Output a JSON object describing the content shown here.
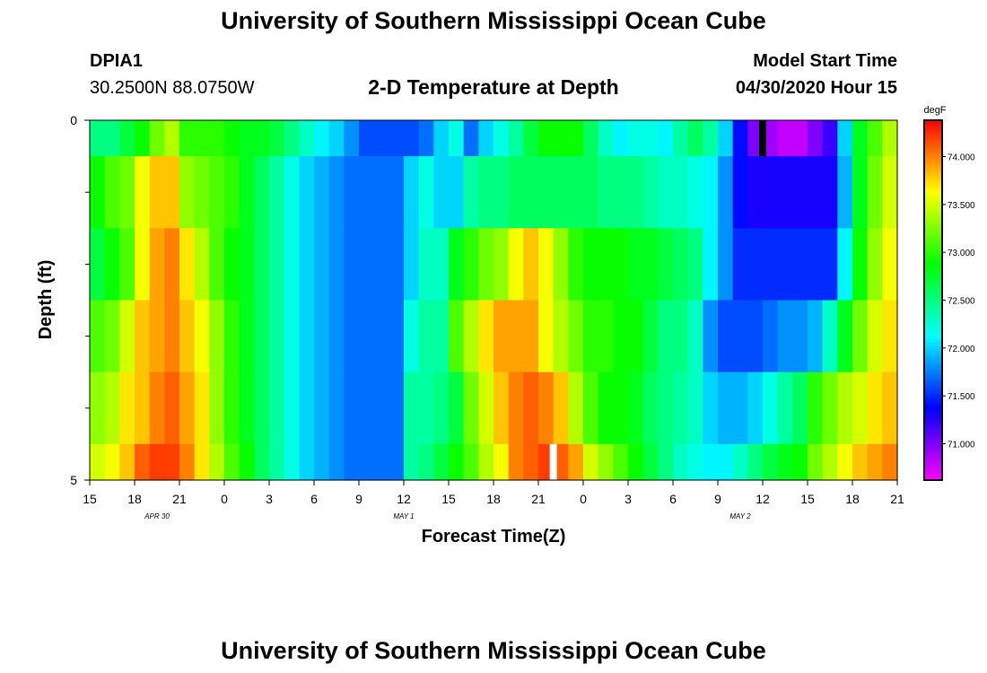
{
  "header": {
    "title_top": "University of Southern Mississippi Ocean Cube",
    "station": "DPIA1",
    "coords": "30.2500N 88.0750W",
    "plot_title": "2-D Temperature at Depth",
    "model_start_label": "Model Start Time",
    "model_start_value": "04/30/2020 Hour 15",
    "title_bottom": "University of Southern Mississippi Ocean Cube"
  },
  "chart_data": {
    "type": "heatmap",
    "title": "2-D Temperature at Depth",
    "xlabel": "Forecast Time(Z)",
    "ylabel": "Depth (ft)",
    "colorbar_unit": "degF",
    "x_range_hours": [
      0,
      54
    ],
    "y_range_ft": [
      0,
      5
    ],
    "y_tick_labels": [
      {
        "value": 0,
        "label": "0"
      },
      {
        "value": 5,
        "label": "5"
      }
    ],
    "y_minor_ticks": [
      1,
      2,
      3,
      4
    ],
    "x_tick_labels": [
      "15",
      "18",
      "21",
      "0",
      "3",
      "6",
      "9",
      "12",
      "15",
      "18",
      "21",
      "0",
      "3",
      "6",
      "9",
      "12",
      "15",
      "18",
      "21"
    ],
    "date_labels": [
      {
        "label": "APR 30",
        "hour": 4.5
      },
      {
        "label": "MAY 1",
        "hour": 21
      },
      {
        "label": "MAY 2",
        "hour": 43.5
      }
    ],
    "colorbar": {
      "min": 70.62,
      "max": 74.38,
      "tick_labels": [
        "74.000",
        "73.500",
        "73.000",
        "72.500",
        "72.000",
        "71.500",
        "71.000"
      ],
      "tick_values": [
        74.0,
        73.5,
        73.0,
        72.5,
        72.0,
        71.5,
        71.0
      ]
    },
    "layer_depths_ft": [
      "0.0-0.5",
      "0.5-1.5",
      "1.5-2.5",
      "2.5-3.5",
      "3.5-4.5",
      "4.5-5.0"
    ],
    "column_hours": [
      0,
      1,
      2,
      3,
      4,
      5,
      6,
      7,
      8,
      9,
      10,
      11,
      12,
      13,
      14,
      15,
      16,
      17,
      18,
      19,
      20,
      21,
      22,
      23,
      24,
      25,
      26,
      27,
      28,
      29,
      30,
      31,
      32,
      33,
      34,
      35,
      36,
      37,
      38,
      39,
      40,
      41,
      42,
      43,
      44,
      45,
      46,
      47,
      48,
      49,
      50,
      51,
      52,
      53
    ],
    "values_degF": [
      [
        72.5,
        72.5,
        72.7,
        72.9,
        73.2,
        73.4,
        73.0,
        73.0,
        73.0,
        72.9,
        72.8,
        72.8,
        72.7,
        72.5,
        72.3,
        72.1,
        72.0,
        71.8,
        71.6,
        71.6,
        71.6,
        71.6,
        71.7,
        72.0,
        72.2,
        71.7,
        72.0,
        72.2,
        72.4,
        72.7,
        72.9,
        72.9,
        72.9,
        72.6,
        72.3,
        72.1,
        72.2,
        72.2,
        72.1,
        72.4,
        72.6,
        72.4,
        72.0,
        71.4,
        71.0,
        70.9,
        70.8,
        70.8,
        71.0,
        71.2,
        72.0,
        72.8,
        73.1,
        73.4
      ],
      [
        72.9,
        73.1,
        73.2,
        73.6,
        73.8,
        73.8,
        73.3,
        73.2,
        73.1,
        73.0,
        72.8,
        72.6,
        72.4,
        72.2,
        72.0,
        71.9,
        71.8,
        71.7,
        71.7,
        71.7,
        71.7,
        72.0,
        72.2,
        72.0,
        72.0,
        72.4,
        72.5,
        72.5,
        72.6,
        72.6,
        72.6,
        72.6,
        72.6,
        72.6,
        72.5,
        72.5,
        72.5,
        72.4,
        72.3,
        72.3,
        72.2,
        72.1,
        71.8,
        71.4,
        71.3,
        71.3,
        71.3,
        71.3,
        71.3,
        71.3,
        71.9,
        72.8,
        73.2,
        73.5
      ],
      [
        72.7,
        72.9,
        73.1,
        73.6,
        73.9,
        74.0,
        73.7,
        73.4,
        73.1,
        72.9,
        72.8,
        72.6,
        72.4,
        72.2,
        72.0,
        71.9,
        71.8,
        71.7,
        71.7,
        71.7,
        71.7,
        72.0,
        72.3,
        72.3,
        72.8,
        73.0,
        73.2,
        73.3,
        73.6,
        73.8,
        73.6,
        73.3,
        73.0,
        72.9,
        72.9,
        72.9,
        72.8,
        72.8,
        72.7,
        72.6,
        72.5,
        72.1,
        71.8,
        71.5,
        71.5,
        71.5,
        71.5,
        71.5,
        71.5,
        71.5,
        72.1,
        72.9,
        73.3,
        73.6
      ],
      [
        73.1,
        73.2,
        73.5,
        73.8,
        73.9,
        74.0,
        73.8,
        73.6,
        73.3,
        73.0,
        72.8,
        72.6,
        72.4,
        72.2,
        72.0,
        71.9,
        71.8,
        71.7,
        71.7,
        71.7,
        71.7,
        72.2,
        72.4,
        72.4,
        73.1,
        73.4,
        73.7,
        73.9,
        73.9,
        73.9,
        73.6,
        73.4,
        73.2,
        73.0,
        73.0,
        72.9,
        72.9,
        72.7,
        72.5,
        72.5,
        72.3,
        71.8,
        71.6,
        71.6,
        71.6,
        71.7,
        71.8,
        71.8,
        71.9,
        72.3,
        72.8,
        73.2,
        73.5,
        73.7
      ],
      [
        73.3,
        73.4,
        73.7,
        73.8,
        74.0,
        74.1,
        73.9,
        73.7,
        73.3,
        73.0,
        72.8,
        72.6,
        72.4,
        72.2,
        72.0,
        71.9,
        71.8,
        71.7,
        71.7,
        71.7,
        71.7,
        72.4,
        72.4,
        72.5,
        72.7,
        73.2,
        73.5,
        73.8,
        74.0,
        74.1,
        74.0,
        73.8,
        73.4,
        73.1,
        72.9,
        72.9,
        72.8,
        72.6,
        72.5,
        72.4,
        72.3,
        72.0,
        71.9,
        71.9,
        72.0,
        72.2,
        72.4,
        72.6,
        73.0,
        73.2,
        73.4,
        73.5,
        73.7,
        73.8
      ],
      [
        73.5,
        73.6,
        73.8,
        74.1,
        74.2,
        74.2,
        74.0,
        73.7,
        73.4,
        73.1,
        72.9,
        72.6,
        72.4,
        72.2,
        72.0,
        71.9,
        71.8,
        71.7,
        71.7,
        71.7,
        71.7,
        72.4,
        72.5,
        72.7,
        72.9,
        73.1,
        73.4,
        73.6,
        74.0,
        74.1,
        74.2,
        74.1,
        73.9,
        73.5,
        73.3,
        73.1,
        72.9,
        72.7,
        72.5,
        72.3,
        72.2,
        72.1,
        72.1,
        72.3,
        72.5,
        72.7,
        72.8,
        72.9,
        73.2,
        73.4,
        73.6,
        73.8,
        73.9,
        74.0
      ]
    ],
    "markers": [
      {
        "name": "observation-marker-black",
        "hour": 45,
        "depth_range_ft": [
          0,
          0.5
        ],
        "color": "#000000"
      },
      {
        "name": "observation-marker-white",
        "hour": 31,
        "depth_range_ft": [
          4.5,
          5
        ],
        "color": "#ffffff"
      }
    ]
  }
}
